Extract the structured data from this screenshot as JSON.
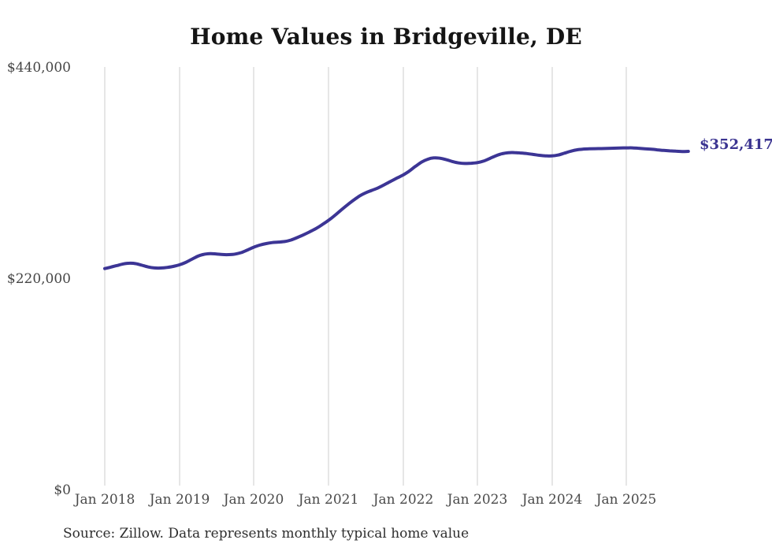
{
  "chart_data": {
    "type": "line",
    "title": "Home Values in Bridgeville, DE",
    "source_note": "Source: Zillow. Data represents monthly typical home value",
    "end_label": "$352,417",
    "final_value": 352417,
    "line_color": "#3c3595",
    "gridline_color": "#cccccc",
    "grid": "vertical-only",
    "legend": "none",
    "xlabel": "",
    "ylabel": "",
    "ylim": [
      0,
      440000
    ],
    "y_tick_labels": [
      "$0",
      "$220,000",
      "$440,000"
    ],
    "x_tick_labels": [
      "Jan 2018",
      "Jan 2019",
      "Jan 2020",
      "Jan 2021",
      "Jan 2022",
      "Jan 2023",
      "Jan 2024",
      "Jan 2025"
    ],
    "x_start": "Jan 2018",
    "x_end": "Nov 2025",
    "frequency": "monthly",
    "series": [
      {
        "name": "Typical home value (USD)",
        "values": [
          230000,
          231500,
          233200,
          234800,
          235600,
          235100,
          233400,
          231600,
          230600,
          230500,
          231100,
          232200,
          233800,
          236300,
          239600,
          242900,
          244900,
          245600,
          245200,
          244600,
          244500,
          245100,
          246700,
          249400,
          252300,
          254500,
          256100,
          257100,
          257600,
          258200,
          259800,
          262300,
          265200,
          268300,
          271700,
          275700,
          280100,
          285200,
          290700,
          296100,
          301000,
          305600,
          309000,
          311600,
          314200,
          317400,
          320900,
          324300,
          327500,
          331600,
          336500,
          341000,
          344100,
          345600,
          345200,
          343700,
          341800,
          340300,
          339700,
          340000,
          340600,
          342200,
          344900,
          347800,
          349900,
          351000,
          351100,
          350700,
          350100,
          349200,
          348300,
          347700,
          347600,
          348500,
          350400,
          352400,
          354000,
          354700,
          355100,
          355200,
          355300,
          355500,
          355700,
          355900,
          356000,
          356000,
          355600,
          355100,
          354600,
          354000,
          353400,
          352900,
          352600,
          352200,
          352417
        ]
      }
    ]
  }
}
